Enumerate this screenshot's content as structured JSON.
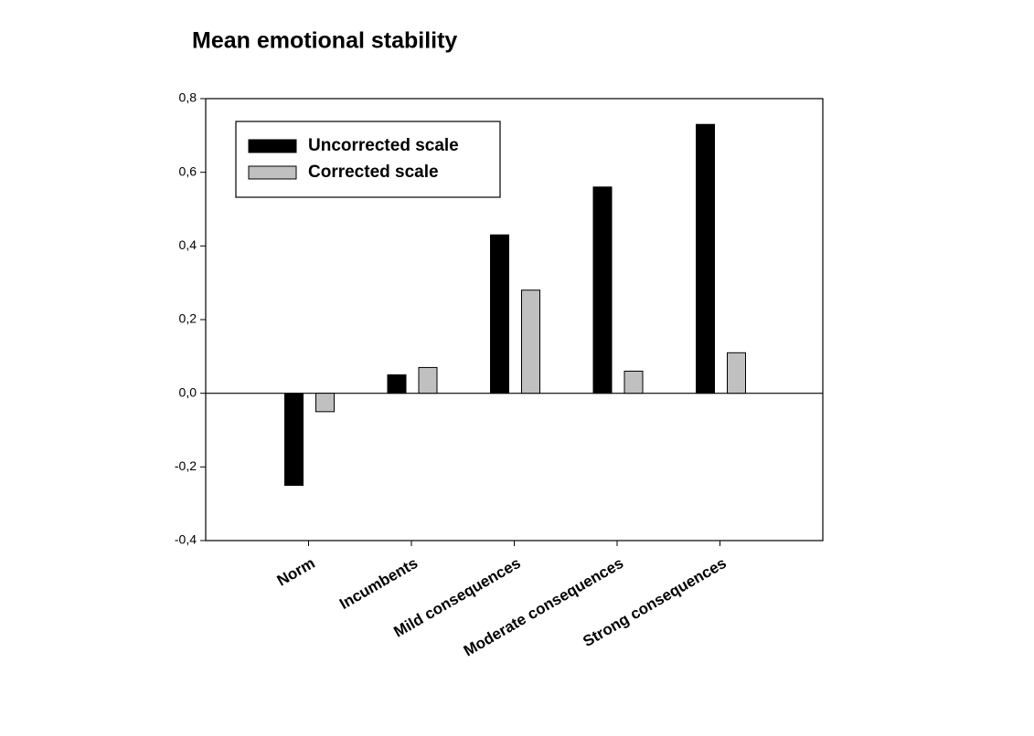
{
  "chart_data": {
    "type": "bar",
    "title": "Mean emotional stability",
    "categories": [
      "Norm",
      "Incumbents",
      "Mild consequences",
      "Moderate consequences",
      "Strong consequences"
    ],
    "series": [
      {
        "name": "Uncorrected scale",
        "color": "#000000",
        "values": [
          -0.25,
          0.05,
          0.43,
          0.56,
          0.73
        ]
      },
      {
        "name": "Corrected scale",
        "color": "#c0c0c0",
        "values": [
          -0.05,
          0.07,
          0.28,
          0.06,
          0.11
        ]
      }
    ],
    "ylim": [
      -0.4,
      0.8
    ],
    "yticks": [
      {
        "value": -0.4,
        "label": "-0,4"
      },
      {
        "value": -0.2,
        "label": "-0,2"
      },
      {
        "value": 0,
        "label": "0,0"
      },
      {
        "value": 0.2,
        "label": "0,2"
      },
      {
        "value": 0.4,
        "label": "0,4"
      },
      {
        "value": 0.6,
        "label": "0,6"
      },
      {
        "value": 0.8,
        "label": "0,8"
      }
    ],
    "legend": "upper left",
    "grid": false
  }
}
